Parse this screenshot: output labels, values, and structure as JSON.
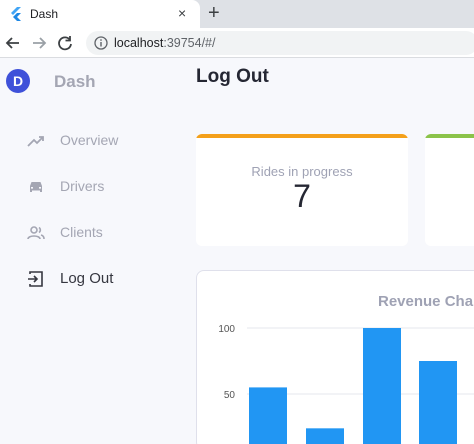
{
  "browser": {
    "tab_title": "Dash",
    "tab_close": "×",
    "new_tab": "+",
    "url_host": "localhost",
    "url_rest": ":39754/#/"
  },
  "sidebar": {
    "brand_initial": "D",
    "brand": "Dash",
    "items": [
      {
        "label": "Overview",
        "icon": "trending-up-icon",
        "active": false
      },
      {
        "label": "Drivers",
        "icon": "car-icon",
        "active": false
      },
      {
        "label": "Clients",
        "icon": "people-icon",
        "active": false
      },
      {
        "label": "Log Out",
        "icon": "exit-icon",
        "active": true
      }
    ]
  },
  "main": {
    "page_title": "Log Out",
    "kpis": [
      {
        "label": "Rides in progress",
        "value": "7",
        "accent": "#f4a01a"
      },
      {
        "label": "",
        "value": "",
        "accent": "#8bc34a"
      }
    ]
  },
  "chart_data": {
    "type": "bar",
    "title": "Revenue Cha",
    "yticks": [
      100,
      50
    ],
    "ylim": [
      0,
      100
    ],
    "values": [
      55,
      24,
      100,
      75
    ],
    "bar_color": "#2196f3"
  }
}
